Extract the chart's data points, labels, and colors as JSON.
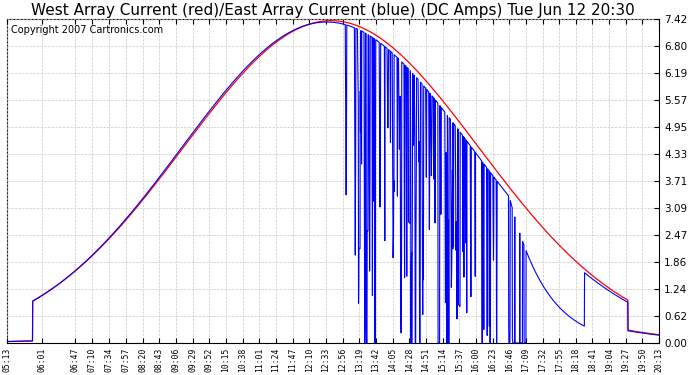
{
  "title": "West Array Current (red)/East Array Current (blue) (DC Amps) Tue Jun 12 20:30",
  "copyright": "Copyright 2007 Cartronics.com",
  "yticks": [
    0.0,
    0.62,
    1.24,
    1.86,
    2.47,
    3.09,
    3.71,
    4.33,
    4.95,
    5.57,
    6.19,
    6.8,
    7.42
  ],
  "ymin": 0.0,
  "ymax": 7.42,
  "xtick_labels": [
    "05:13",
    "06:01",
    "06:47",
    "07:10",
    "07:34",
    "07:57",
    "08:20",
    "08:43",
    "09:06",
    "09:29",
    "09:52",
    "10:15",
    "10:38",
    "11:01",
    "11:24",
    "11:47",
    "12:10",
    "12:33",
    "12:56",
    "13:19",
    "13:42",
    "14:05",
    "14:28",
    "14:51",
    "15:14",
    "15:37",
    "16:00",
    "16:23",
    "16:46",
    "17:09",
    "17:32",
    "17:55",
    "18:18",
    "18:41",
    "19:04",
    "19:27",
    "19:50",
    "20:13"
  ],
  "bg_color": "#ffffff",
  "grid_color": "#c8c8c8",
  "red_color": "#ff0000",
  "blue_color": "#0000ff",
  "title_font_size": 11,
  "copyright_font_size": 7
}
